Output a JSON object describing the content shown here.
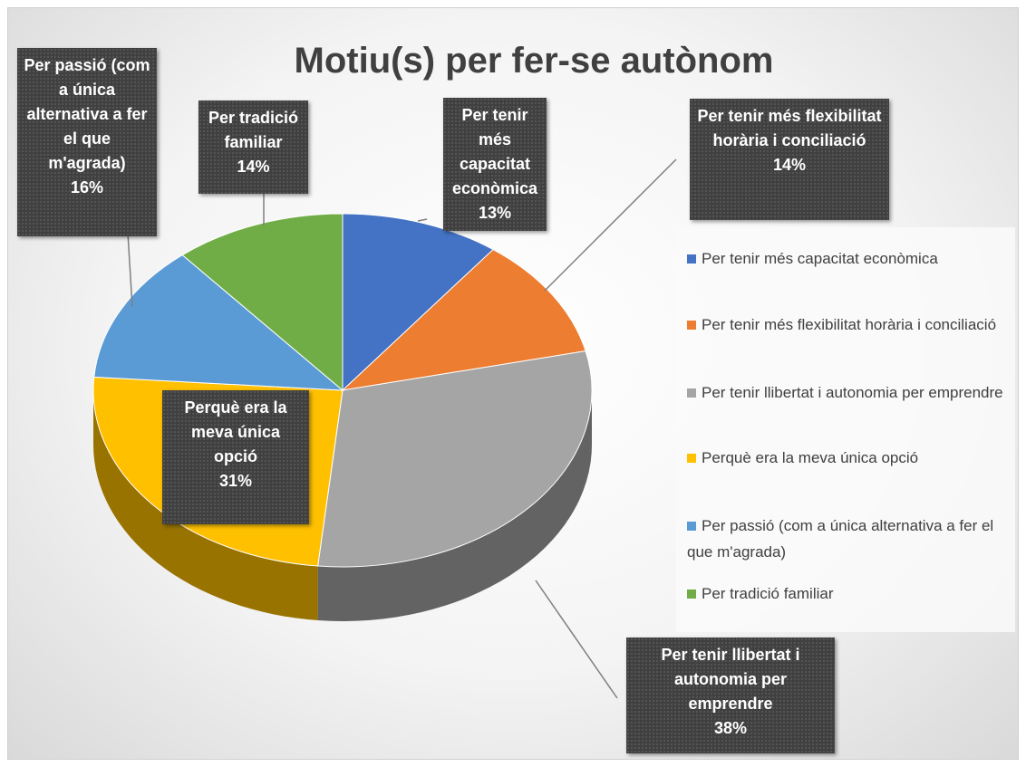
{
  "chart_data": {
    "type": "pie",
    "title": "Motiu(s) per fer-se autònom",
    "categories": [
      "Per tenir més capacitat econòmica",
      "Per tenir més flexibilitat horària i conciliació",
      "Per tenir llibertat i autonomia per emprendre",
      "Perquè era la meva única opció",
      "Per passió (com a única alternativa a fer el que m'agrada)",
      "Per tradició familiar"
    ],
    "values": [
      13,
      14,
      38,
      31,
      16,
      14
    ],
    "value_labels": [
      "13%",
      "14%",
      "38%",
      "31%",
      "16%",
      "14%"
    ],
    "colors": [
      "#4472c4",
      "#ed7d31",
      "#a5a5a5",
      "#ffc000",
      "#5b9bd5",
      "#70ad47"
    ],
    "legend": "right"
  }
}
